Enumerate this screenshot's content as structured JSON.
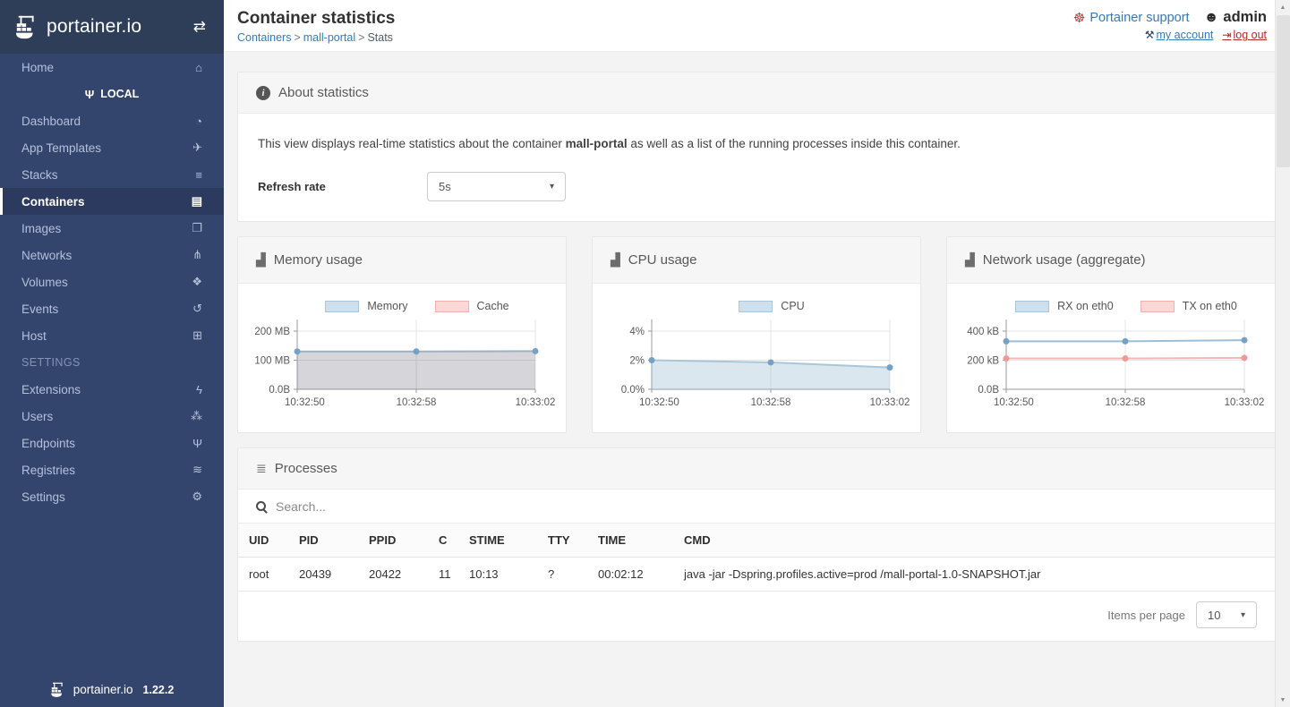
{
  "brand": {
    "name": "portainer.io",
    "version": "1.22.2"
  },
  "sidebar": {
    "home": {
      "label": "Home"
    },
    "endpoint_label": "LOCAL",
    "items": [
      {
        "label": "Dashboard"
      },
      {
        "label": "App Templates"
      },
      {
        "label": "Stacks"
      },
      {
        "label": "Containers"
      },
      {
        "label": "Images"
      },
      {
        "label": "Networks"
      },
      {
        "label": "Volumes"
      },
      {
        "label": "Events"
      },
      {
        "label": "Host"
      }
    ],
    "settings_header": "SETTINGS",
    "settings_items": [
      {
        "label": "Extensions"
      },
      {
        "label": "Users"
      },
      {
        "label": "Endpoints"
      },
      {
        "label": "Registries"
      },
      {
        "label": "Settings"
      }
    ]
  },
  "header": {
    "title": "Container statistics",
    "breadcrumb": [
      "Containers",
      "mall-portal",
      "Stats"
    ],
    "support_label": "Portainer support",
    "user_label": "admin",
    "my_account_label": "my account",
    "log_out_label": "log out"
  },
  "about": {
    "title": "About statistics",
    "text_before": "This view displays real-time statistics about the container ",
    "container_name": "mall-portal",
    "text_after": " as well as a list of the running processes inside this container.",
    "refresh_label": "Refresh rate",
    "refresh_value": "5s"
  },
  "chart_data": [
    {
      "type": "area",
      "title": "Memory usage",
      "x": [
        "10:32:50",
        "10:32:58",
        "10:33:02"
      ],
      "ylim": [
        0,
        240
      ],
      "yticks": [
        {
          "value": 0,
          "label": "0.0B"
        },
        {
          "value": 100,
          "label": "100 MB"
        },
        {
          "value": 200,
          "label": "200 MB"
        }
      ],
      "series": [
        {
          "name": "Memory",
          "values": [
            130,
            130,
            131
          ],
          "stroke": "#9fb0bf",
          "fill": "rgba(125,125,140,0.32)",
          "point": "#74a2c6",
          "legend_bg": "#cfe0ec",
          "legend_border": "#a8c6dd"
        },
        {
          "name": "Cache",
          "values": [
            0,
            0,
            0
          ],
          "draw": false,
          "stroke": "#f3b7b5",
          "fill": "none",
          "point": "#ee9b95",
          "legend_bg": "#fbd7d5",
          "legend_border": "#f3b0ac"
        }
      ]
    },
    {
      "type": "area",
      "title": "CPU usage",
      "x": [
        "10:32:50",
        "10:32:58",
        "10:33:02"
      ],
      "ylim": [
        0,
        4.8
      ],
      "yticks": [
        {
          "value": 0,
          "label": "0.0%"
        },
        {
          "value": 2,
          "label": "2%"
        },
        {
          "value": 4,
          "label": "4%"
        }
      ],
      "series": [
        {
          "name": "CPU",
          "values": [
            2.0,
            1.85,
            1.5
          ],
          "stroke": "#a9c6d8",
          "fill": "rgba(151,187,205,0.35)",
          "point": "#74a2c6",
          "legend_bg": "#cfe0ec",
          "legend_border": "#a8c6dd"
        }
      ]
    },
    {
      "type": "line",
      "title": "Network usage (aggregate)",
      "x": [
        "10:32:50",
        "10:32:58",
        "10:33:02"
      ],
      "ylim": [
        0,
        480
      ],
      "yticks": [
        {
          "value": 0,
          "label": "0.0B"
        },
        {
          "value": 200,
          "label": "200 kB"
        },
        {
          "value": 400,
          "label": "400 kB"
        }
      ],
      "series": [
        {
          "name": "RX on eth0",
          "values": [
            330,
            330,
            338
          ],
          "stroke": "#9dbfd6",
          "fill": "none",
          "point": "#74a2c6",
          "legend_bg": "#cfe0ec",
          "legend_border": "#a8c6dd"
        },
        {
          "name": "TX on eth0",
          "values": [
            212,
            212,
            216
          ],
          "stroke": "#f3b7b5",
          "fill": "none",
          "point": "#ee9b95",
          "legend_bg": "#fbd7d5",
          "legend_border": "#f3b0ac"
        }
      ]
    }
  ],
  "processes": {
    "title": "Processes",
    "search_placeholder": "Search...",
    "columns": [
      "UID",
      "PID",
      "PPID",
      "C",
      "STIME",
      "TTY",
      "TIME",
      "CMD"
    ],
    "rows": [
      [
        "root",
        "20439",
        "20422",
        "11",
        "10:13",
        "?",
        "00:02:12",
        "java -jar -Dspring.profiles.active=prod /mall-portal-1.0-SNAPSHOT.jar"
      ]
    ],
    "items_per_page_label": "Items per page",
    "items_per_page_value": "10"
  }
}
